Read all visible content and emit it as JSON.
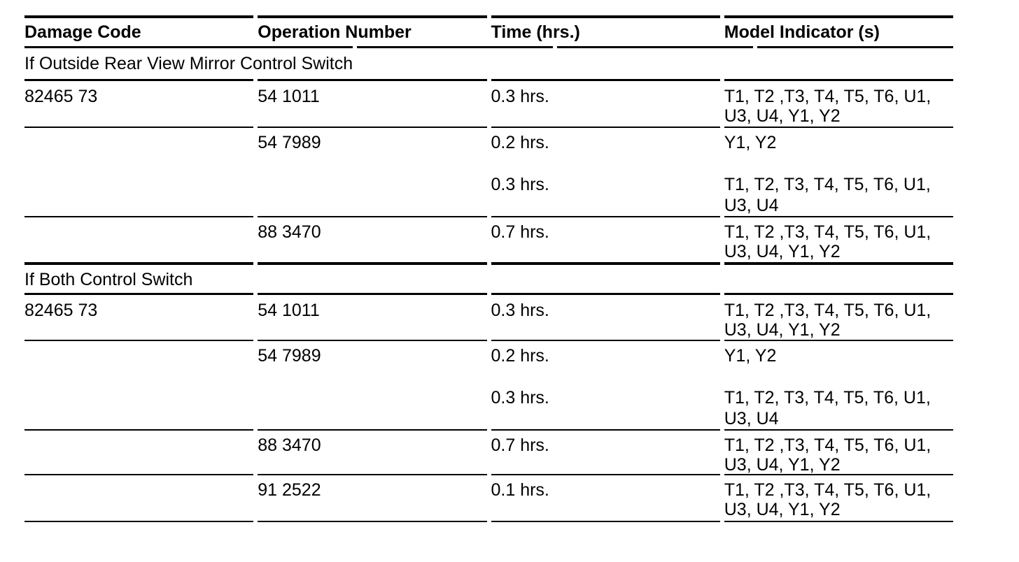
{
  "colors": {
    "background": "#ffffff",
    "text": "#000000",
    "rule": "#000000"
  },
  "table": {
    "columns": [
      {
        "label": "Damage Code"
      },
      {
        "label": "Operation Number"
      },
      {
        "label": "Time (hrs.)"
      },
      {
        "label": "Model Indicator (s)"
      }
    ],
    "sections": [
      {
        "title": "If Outside Rear View Mirror Control Switch",
        "rows": [
          {
            "damage_code": "82465 73",
            "operation_number": "54 1011",
            "time": "0.3 hrs.",
            "models": "T1, T2 ,T3, T4, T5, T6, U1,\nU3, U4, Y1, Y2"
          },
          {
            "damage_code": "",
            "operation_number": "54 7989",
            "time": "0.2 hrs.\n\n0.3 hrs.",
            "models": "Y1, Y2\n\nT1, T2, T3, T4, T5, T6, U1,\nU3, U4"
          },
          {
            "damage_code": "",
            "operation_number": "88 3470",
            "time": "0.7 hrs.",
            "models": "T1, T2 ,T3, T4, T5, T6, U1,\nU3, U4, Y1, Y2"
          }
        ]
      },
      {
        "title": "If Both Control Switch",
        "rows": [
          {
            "damage_code": "82465 73",
            "operation_number": "54 1011",
            "time": "0.3 hrs.",
            "models": "T1, T2 ,T3, T4, T5, T6, U1,\nU3, U4, Y1, Y2"
          },
          {
            "damage_code": "",
            "operation_number": "54 7989",
            "time": "0.2 hrs.\n\n0.3 hrs.",
            "models": "Y1, Y2\n\nT1, T2, T3, T4, T5, T6, U1,\nU3, U4"
          },
          {
            "damage_code": "",
            "operation_number": "88 3470",
            "time": "0.7 hrs.",
            "models": "T1, T2 ,T3, T4, T5, T6, U1,\nU3, U4, Y1, Y2"
          },
          {
            "damage_code": "",
            "operation_number": "91 2522",
            "time": "0.1 hrs.",
            "models": "T1, T2 ,T3, T4, T5, T6, U1,\nU3, U4, Y1, Y2"
          }
        ]
      }
    ]
  }
}
